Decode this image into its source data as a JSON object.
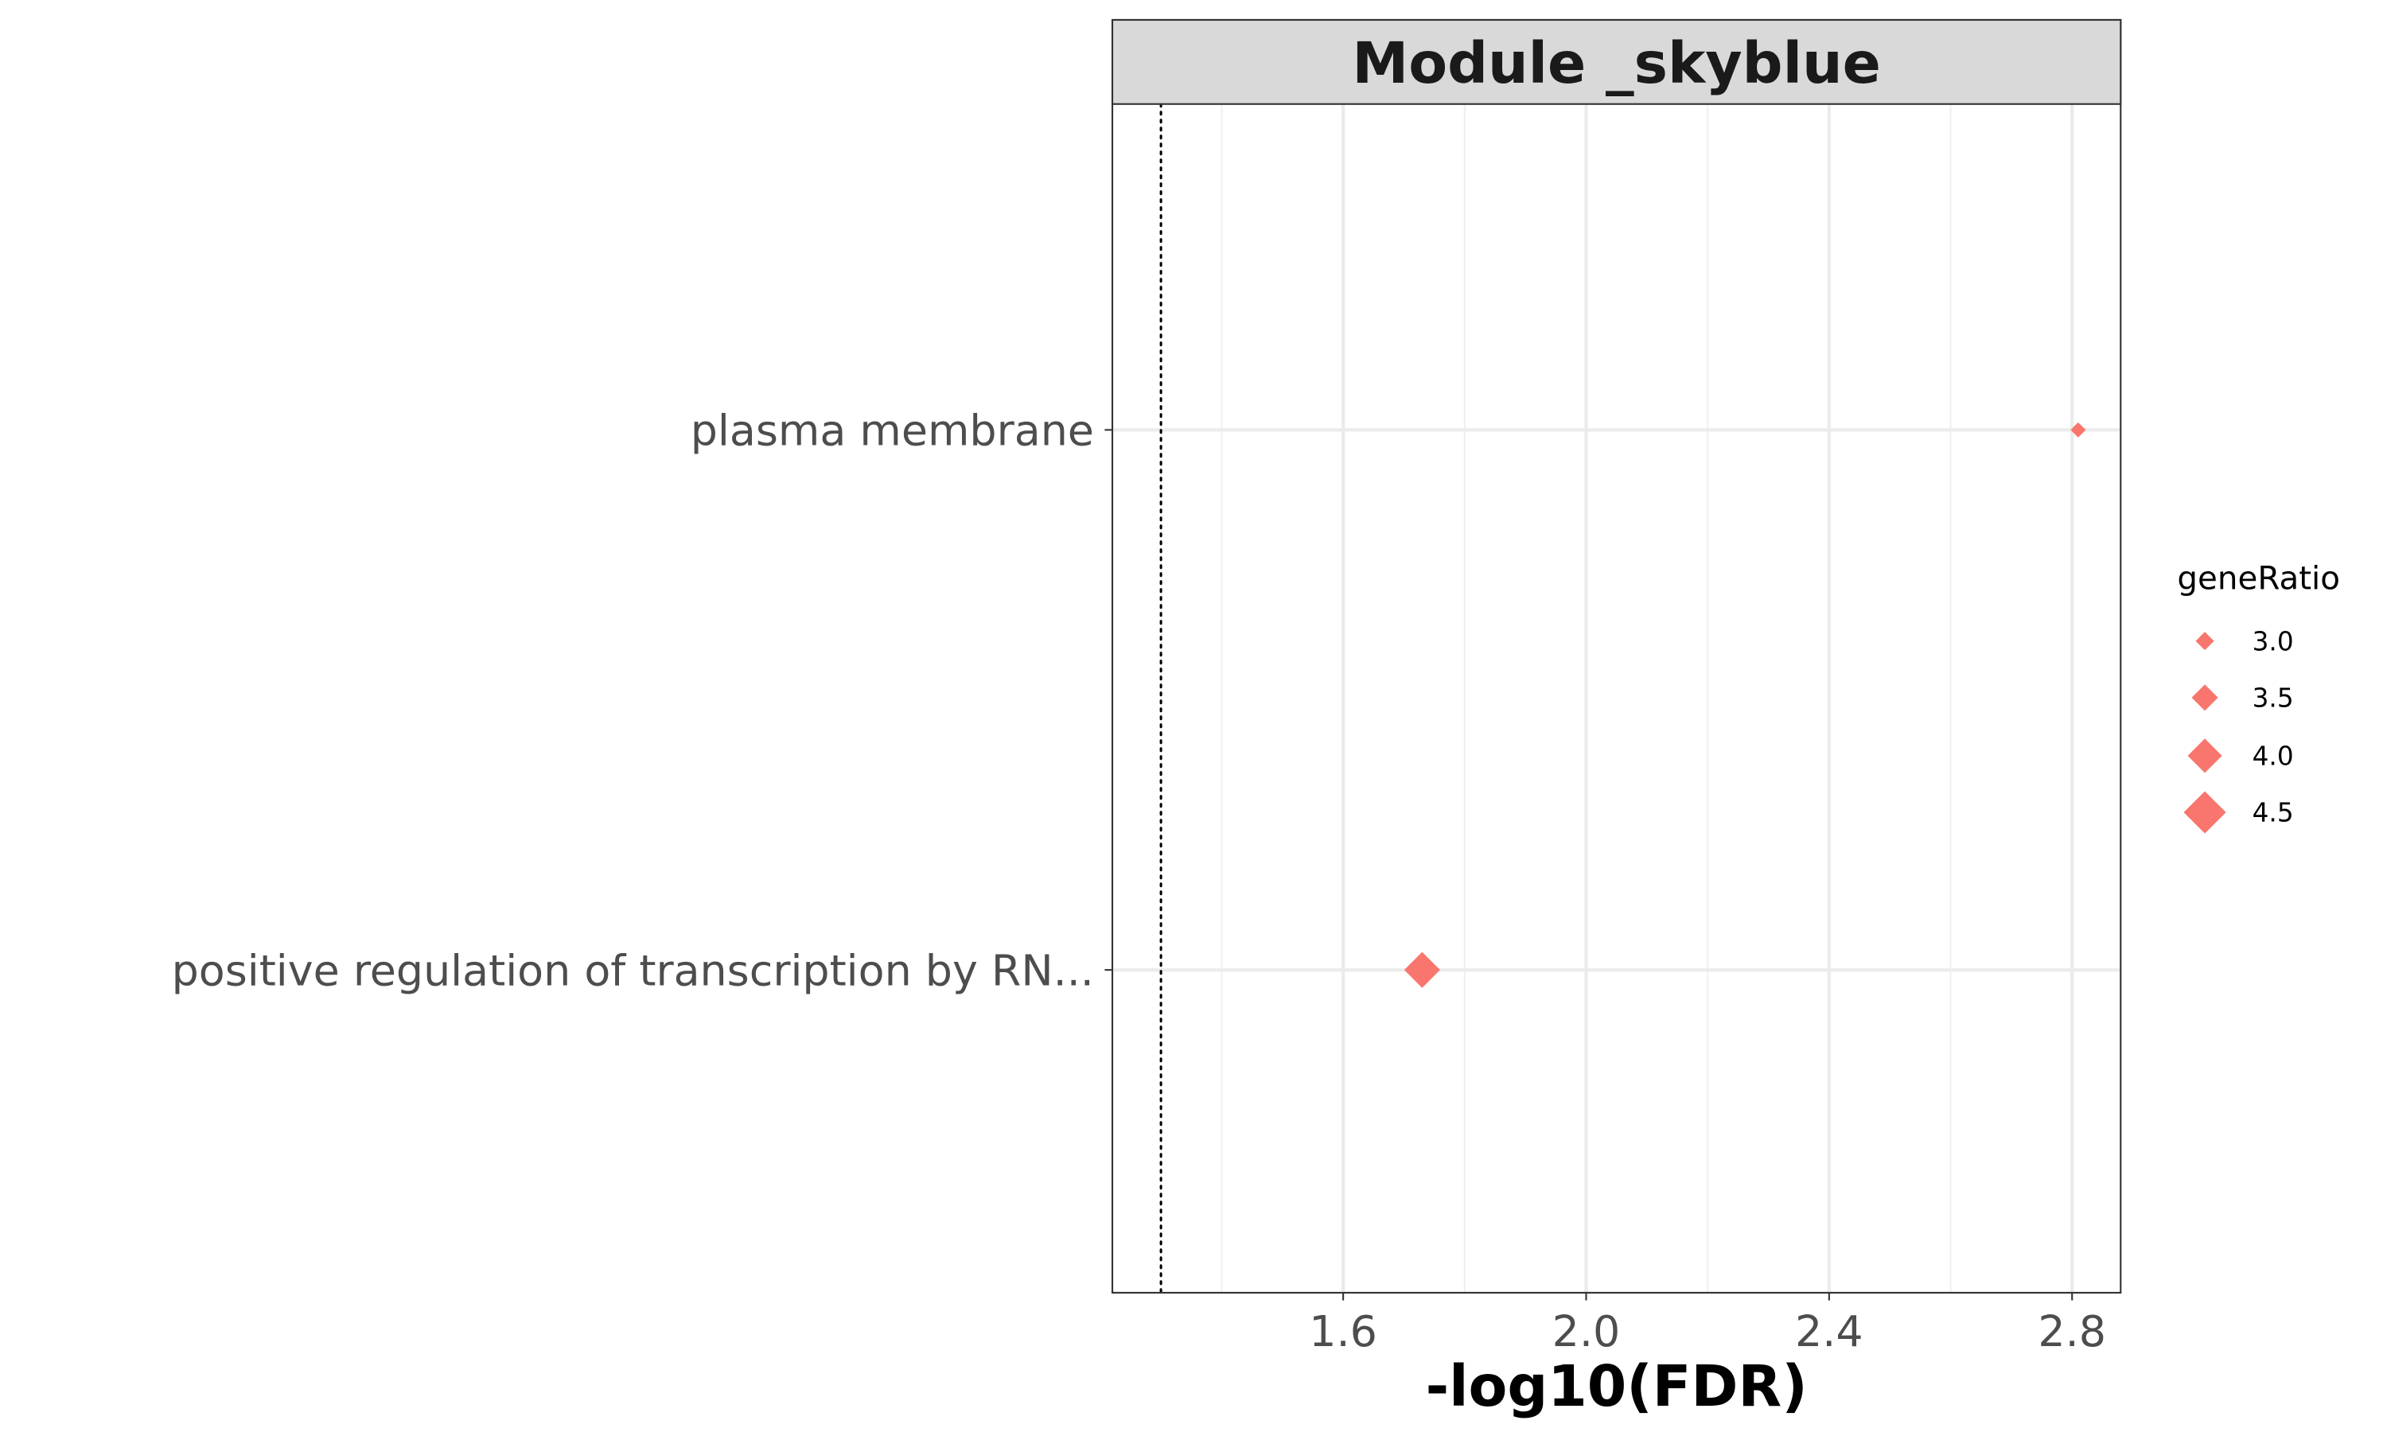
{
  "chart_data": {
    "type": "scatter",
    "facet_title": "Module _skyblue",
    "xlabel": "-log10(FDR)",
    "ylabel": "",
    "xlim": [
      1.22,
      2.88
    ],
    "x_ticks": [
      1.6,
      2.0,
      2.4,
      2.8
    ],
    "x_tick_labels": [
      "1.6",
      "2.0",
      "2.4",
      "2.8"
    ],
    "x_minor_ticks": [
      1.4,
      1.8,
      2.2,
      2.6
    ],
    "reference_line_x": 1.3,
    "reference_line_style": "dotted",
    "grid": true,
    "categories": [
      "plasma membrane",
      "positive regulation of transcription by RN..."
    ],
    "points": [
      {
        "category": "plasma membrane",
        "x": 2.81,
        "geneRatio": 2.8
      },
      {
        "category": "positive regulation of transcription by RN...",
        "x": 1.73,
        "geneRatio": 4.1
      }
    ],
    "marker_shape": "diamond",
    "marker_color": "#F8766D",
    "legend": {
      "title": "geneRatio",
      "placement": "right",
      "entries": [
        {
          "label": "3.0",
          "value": 3.0
        },
        {
          "label": "3.5",
          "value": 3.5
        },
        {
          "label": "4.0",
          "value": 4.0
        },
        {
          "label": "4.5",
          "value": 4.5
        }
      ]
    }
  }
}
